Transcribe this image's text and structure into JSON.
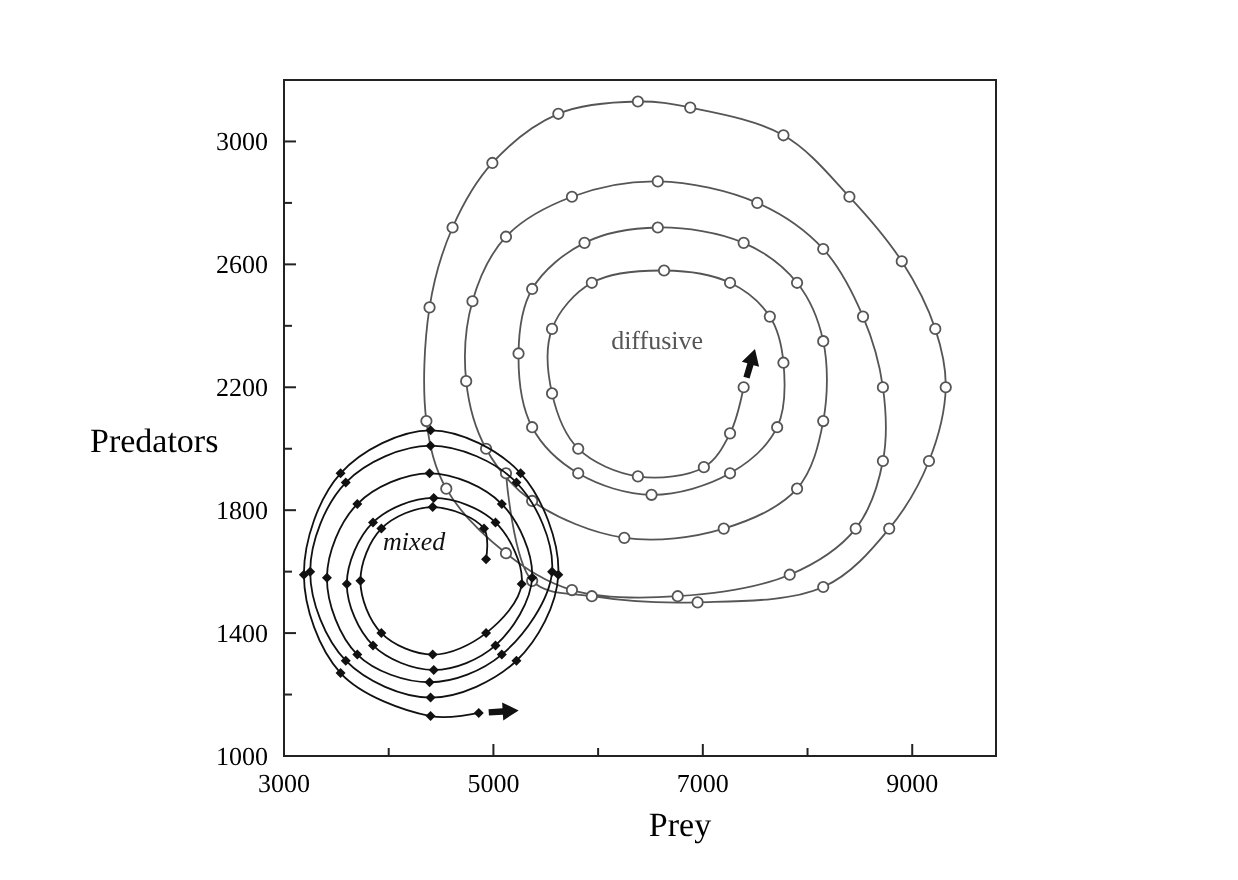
{
  "chart_data": {
    "type": "line",
    "xlabel": "Prey",
    "ylabel": "Predators",
    "xlim": [
      3000,
      9800
    ],
    "ylim": [
      1000,
      3200
    ],
    "xticks": [
      3000,
      {
        "value": 4000,
        "label": null
      },
      5000,
      {
        "value": 6000,
        "label": null
      },
      7000,
      {
        "value": 8000,
        "label": null
      },
      9000
    ],
    "yticks": [
      1000,
      {
        "value": 1200,
        "label": null
      },
      1400,
      {
        "value": 1600,
        "label": null
      },
      1800,
      {
        "value": 2000,
        "label": null
      },
      2200,
      {
        "value": 2400,
        "label": null
      },
      2600,
      {
        "value": 2800,
        "label": null
      },
      3000
    ],
    "grid": false,
    "series": [
      {
        "name": "diffusive",
        "color": "#555555",
        "marker": "circle",
        "x": [
          5120,
          5370,
          5940,
          6950,
          8150,
          8780,
          9160,
          9320,
          9220,
          8900,
          8400,
          7770,
          6880,
          6380,
          5620,
          4990,
          4610,
          4390,
          4360,
          4550,
          5120,
          5750,
          6760,
          7830,
          8460,
          8720,
          8720,
          8530,
          8150,
          7520,
          6570,
          5750,
          5120,
          4800,
          4740,
          4930,
          5370,
          6250,
          7200,
          7900,
          8150,
          8150,
          7900,
          7390,
          6570,
          5870,
          5370,
          5240,
          5370,
          5810,
          6510,
          7260,
          7710,
          7770,
          7640,
          7260,
          6630,
          5940,
          5560,
          5560,
          5810,
          6380,
          7010,
          7260,
          7390
        ],
        "values": [
          1920,
          1570,
          1520,
          1500,
          1550,
          1740,
          1960,
          2200,
          2390,
          2610,
          2820,
          3020,
          3110,
          3130,
          3090,
          2930,
          2720,
          2460,
          2090,
          1870,
          1660,
          1540,
          1520,
          1590,
          1740,
          1960,
          2200,
          2430,
          2650,
          2800,
          2870,
          2820,
          2690,
          2480,
          2220,
          2000,
          1830,
          1710,
          1740,
          1870,
          2090,
          2350,
          2540,
          2670,
          2720,
          2670,
          2520,
          2310,
          2070,
          1920,
          1850,
          1920,
          2070,
          2280,
          2430,
          2540,
          2580,
          2540,
          2390,
          2180,
          2000,
          1910,
          1940,
          2050,
          2200
        ]
      },
      {
        "name": "mixed",
        "color": "#111111",
        "marker": "diamond",
        "x": [
          4930,
          4910,
          4420,
          3930,
          3730,
          3930,
          4420,
          4930,
          5270,
          5020,
          4430,
          3850,
          3600,
          3850,
          4430,
          5020,
          5370,
          5080,
          4390,
          3700,
          3410,
          3700,
          4390,
          5080,
          5560,
          5220,
          4400,
          3590,
          3250,
          3590,
          4400,
          5220,
          5620,
          5260,
          4400,
          3540,
          3190,
          3540,
          4400,
          4860
        ],
        "values": [
          1640,
          1740,
          1810,
          1740,
          1570,
          1400,
          1330,
          1400,
          1560,
          1760,
          1840,
          1760,
          1560,
          1360,
          1280,
          1360,
          1580,
          1820,
          1920,
          1820,
          1580,
          1330,
          1240,
          1330,
          1600,
          1890,
          2010,
          1890,
          1600,
          1310,
          1190,
          1310,
          1590,
          1920,
          2060,
          1920,
          1590,
          1270,
          1130,
          1140
        ]
      }
    ]
  }
}
